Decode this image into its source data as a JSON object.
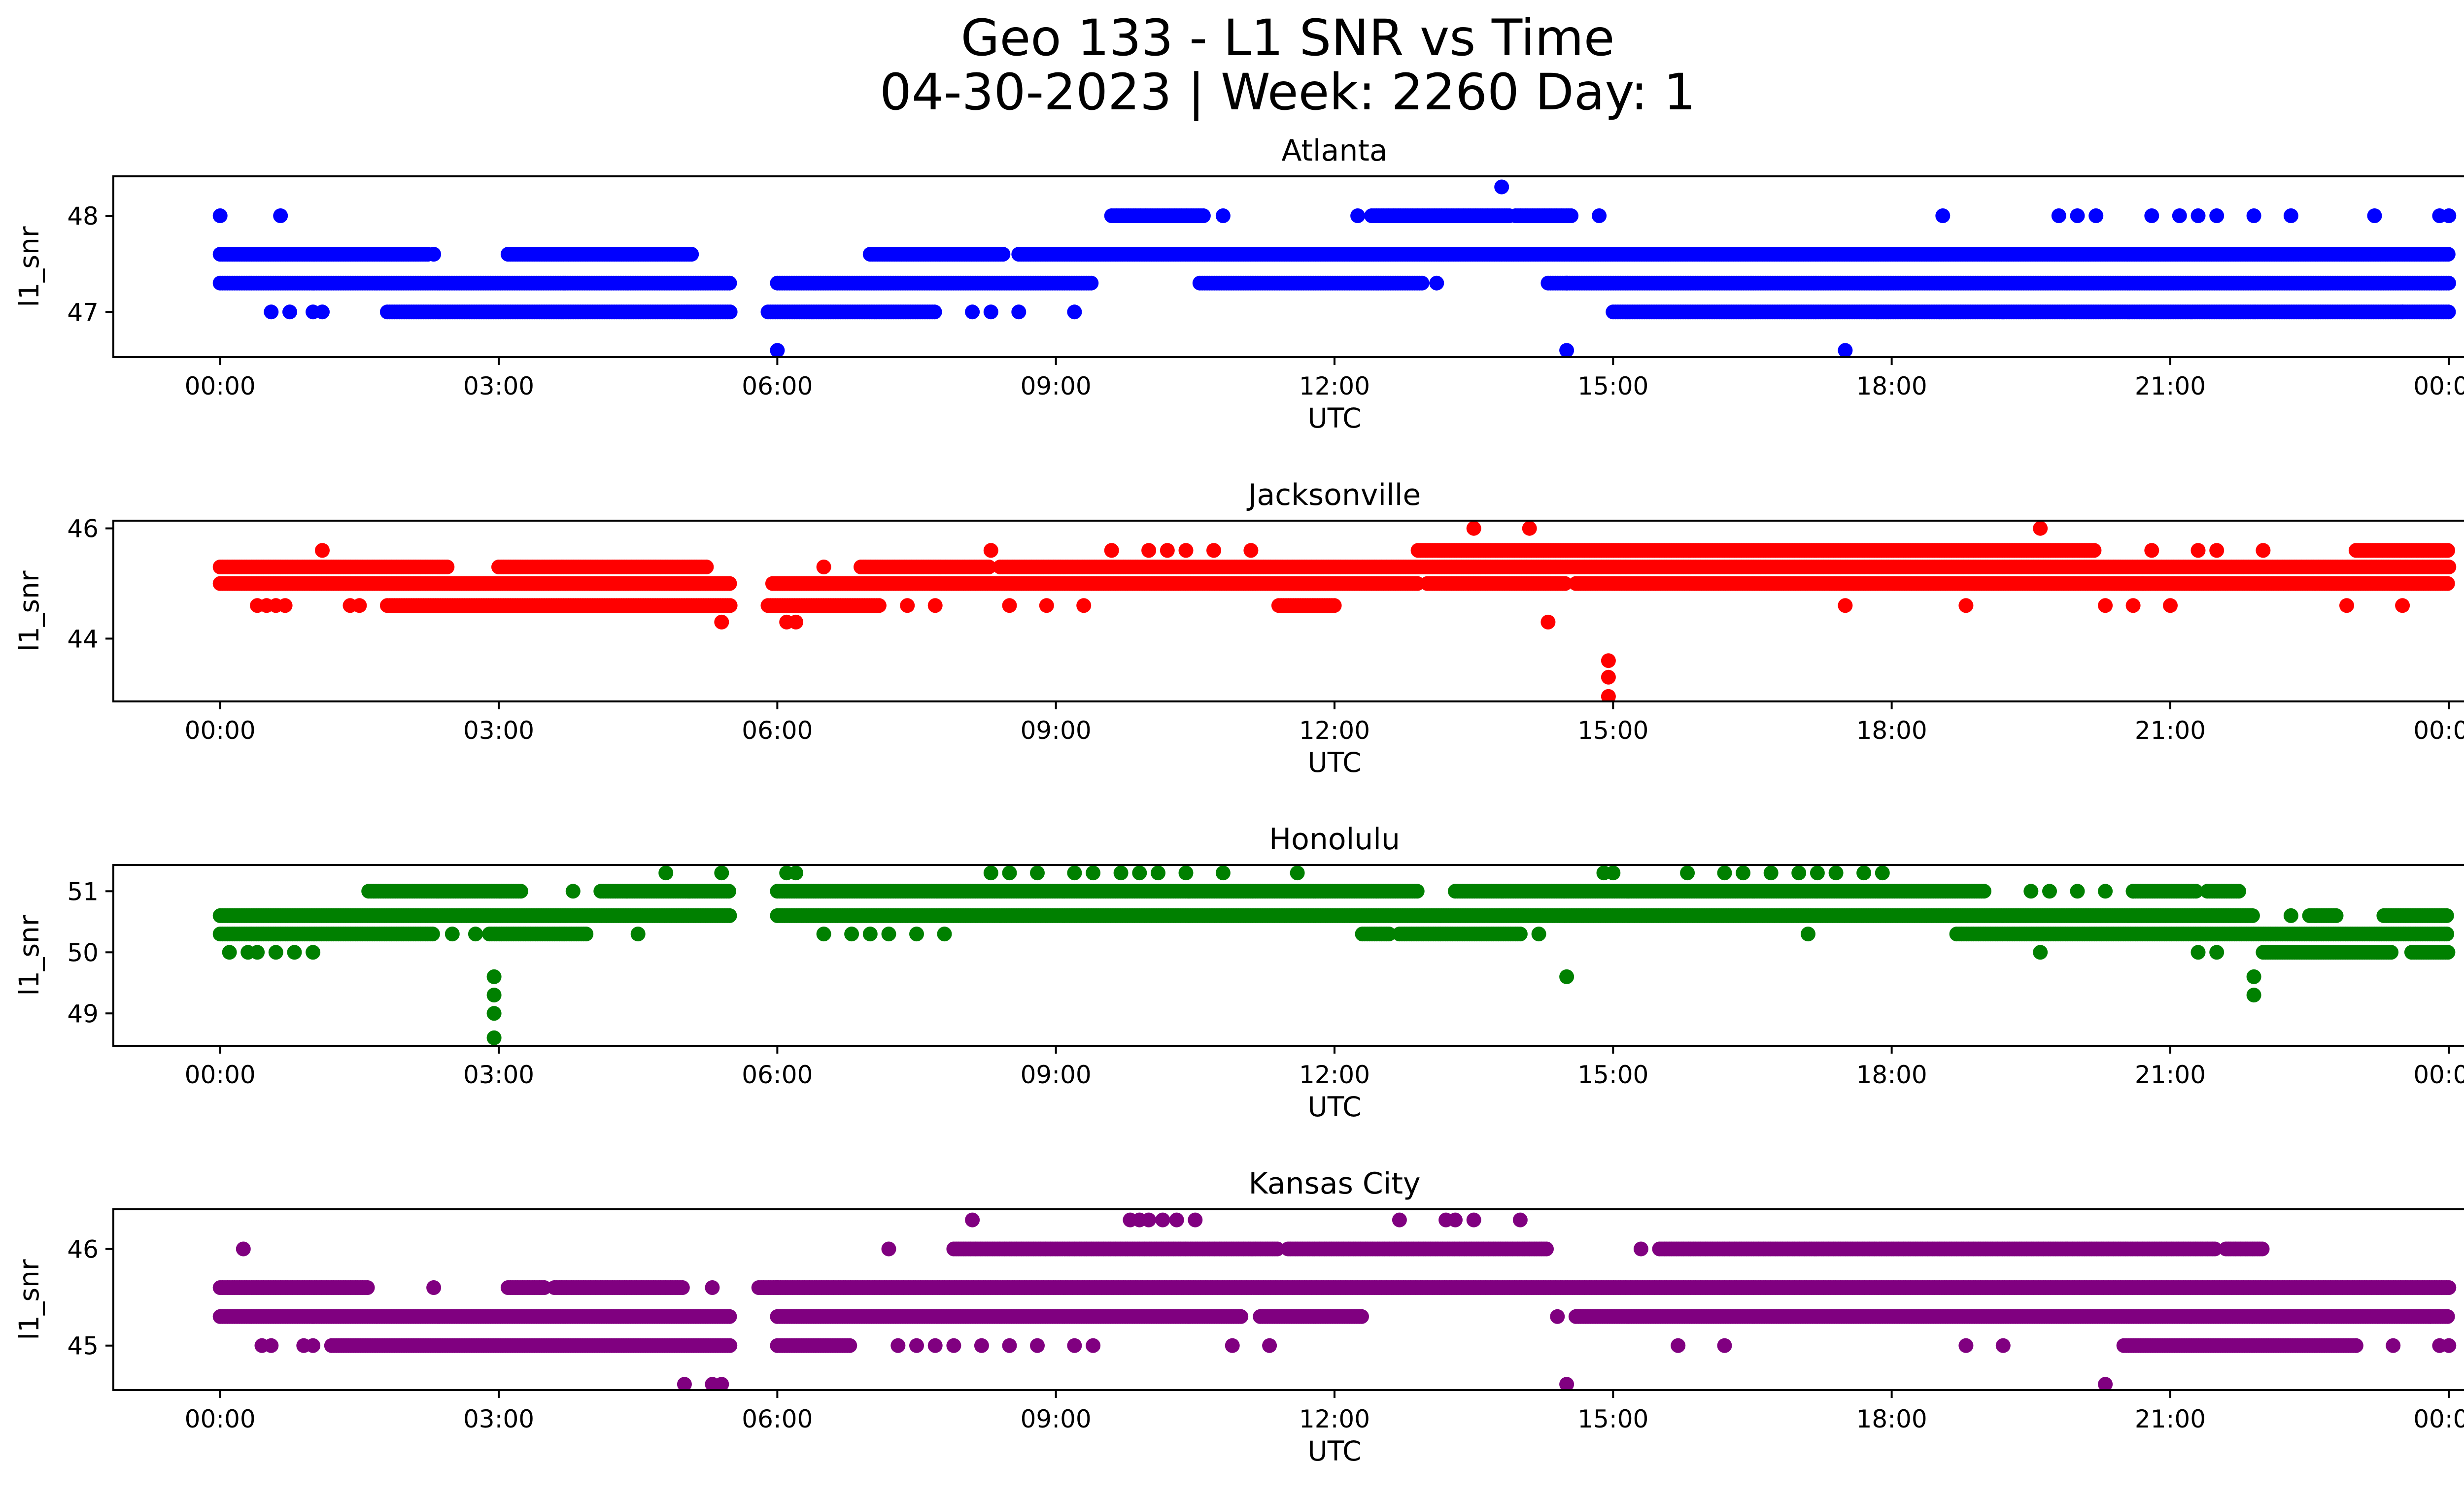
{
  "figure": {
    "title_line1": "Geo 133 - L1 SNR vs Time",
    "title_line2": "04-30-2023 | Week: 2260 Day: 1"
  },
  "chart_data": [
    {
      "type": "scatter",
      "title": "Atlanta",
      "color": "#0000ff",
      "xlabel": "UTC",
      "ylabel": "l1_snr",
      "x_unit": "hours",
      "xlim": [
        -1.15,
        25.15
      ],
      "ylim": [
        46.53,
        48.41
      ],
      "x_ticks": [
        0,
        3,
        6,
        9,
        12,
        15,
        18,
        21,
        24
      ],
      "x_tick_labels": [
        "00:00",
        "03:00",
        "06:00",
        "09:00",
        "12:00",
        "15:00",
        "18:00",
        "21:00",
        "00:00"
      ],
      "y_ticks": [
        47,
        48
      ],
      "y_tick_labels": [
        "47",
        "48"
      ],
      "bands": [
        {
          "y": 47.6,
          "ranges": [
            [
              0,
              2.25
            ],
            [
              3.1,
              5.1
            ],
            [
              7.0,
              8.45
            ],
            [
              8.6,
              24.0
            ]
          ]
        },
        {
          "y": 47.3,
          "ranges": [
            [
              0,
              5.5
            ],
            [
              6.0,
              9.4
            ],
            [
              10.55,
              12.95
            ],
            [
              14.3,
              24.0
            ]
          ]
        },
        {
          "y": 47.0,
          "ranges": [
            [
              1.8,
              5.5
            ],
            [
              5.9,
              7.7
            ],
            [
              15.0,
              24.0
            ]
          ]
        },
        {
          "y": 48.0,
          "ranges": [
            [
              9.6,
              10.6
            ],
            [
              12.4,
              13.9
            ],
            [
              13.95,
              14.55
            ]
          ]
        }
      ],
      "points": [
        [
          0.0,
          48.0
        ],
        [
          0.65,
          48.0
        ],
        [
          0.55,
          47.0
        ],
        [
          0.75,
          47.0
        ],
        [
          1.0,
          47.0
        ],
        [
          1.1,
          47.0
        ],
        [
          2.3,
          47.6
        ],
        [
          8.1,
          47.0
        ],
        [
          8.3,
          47.0
        ],
        [
          8.6,
          47.0
        ],
        [
          9.2,
          47.0
        ],
        [
          10.8,
          48.0
        ],
        [
          12.25,
          48.0
        ],
        [
          13.1,
          47.3
        ],
        [
          14.5,
          47.3
        ],
        [
          14.85,
          48.0
        ],
        [
          13.8,
          48.3
        ],
        [
          6.0,
          46.6
        ],
        [
          14.5,
          46.6
        ],
        [
          17.5,
          46.6
        ],
        [
          18.55,
          48.0
        ],
        [
          19.8,
          48.0
        ],
        [
          20.0,
          48.0
        ],
        [
          20.2,
          48.0
        ],
        [
          20.8,
          48.0
        ],
        [
          21.1,
          48.0
        ],
        [
          21.3,
          48.0
        ],
        [
          21.5,
          48.0
        ],
        [
          21.9,
          48.0
        ],
        [
          22.3,
          48.0
        ],
        [
          23.2,
          48.0
        ],
        [
          23.9,
          48.0
        ],
        [
          24.0,
          48.0
        ],
        [
          23.5,
          47.0
        ]
      ]
    },
    {
      "type": "scatter",
      "title": "Jacksonville",
      "color": "#ff0000",
      "xlabel": "UTC",
      "ylabel": "l1_snr",
      "x_unit": "hours",
      "xlim": [
        -1.15,
        25.15
      ],
      "ylim": [
        42.86,
        46.14
      ],
      "x_ticks": [
        0,
        3,
        6,
        9,
        12,
        15,
        18,
        21,
        24
      ],
      "x_tick_labels": [
        "00:00",
        "03:00",
        "06:00",
        "09:00",
        "12:00",
        "15:00",
        "18:00",
        "21:00",
        "00:00"
      ],
      "y_ticks": [
        44,
        46
      ],
      "y_tick_labels": [
        "44",
        "46"
      ],
      "bands": [
        {
          "y": 45.3,
          "ranges": [
            [
              0,
              2.45
            ],
            [
              3.0,
              5.25
            ],
            [
              6.9,
              8.3
            ],
            [
              8.4,
              24.0
            ]
          ]
        },
        {
          "y": 45.0,
          "ranges": [
            [
              0,
              5.5
            ],
            [
              5.95,
              12.9
            ],
            [
              13.0,
              14.5
            ],
            [
              14.6,
              24.0
            ]
          ]
        },
        {
          "y": 44.6,
          "ranges": [
            [
              1.8,
              5.5
            ],
            [
              5.9,
              7.1
            ],
            [
              11.4,
              12.0
            ]
          ]
        },
        {
          "y": 45.6,
          "ranges": [
            [
              12.9,
              20.2
            ],
            [
              23.0,
              24.0
            ]
          ]
        }
      ],
      "points": [
        [
          0.4,
          44.6
        ],
        [
          0.5,
          44.6
        ],
        [
          0.6,
          44.6
        ],
        [
          0.7,
          44.6
        ],
        [
          1.4,
          44.6
        ],
        [
          1.5,
          44.6
        ],
        [
          1.1,
          45.6
        ],
        [
          5.4,
          44.3
        ],
        [
          6.1,
          44.3
        ],
        [
          6.2,
          44.3
        ],
        [
          6.5,
          45.3
        ],
        [
          7.4,
          44.6
        ],
        [
          7.7,
          44.6
        ],
        [
          8.5,
          44.6
        ],
        [
          8.9,
          44.6
        ],
        [
          9.3,
          44.6
        ],
        [
          8.3,
          45.6
        ],
        [
          9.6,
          45.6
        ],
        [
          10.0,
          45.6
        ],
        [
          10.2,
          45.6
        ],
        [
          10.4,
          45.6
        ],
        [
          10.7,
          45.6
        ],
        [
          11.1,
          45.6
        ],
        [
          13.5,
          46.0
        ],
        [
          14.1,
          46.0
        ],
        [
          19.6,
          46.0
        ],
        [
          14.3,
          44.3
        ],
        [
          14.95,
          43.6
        ],
        [
          14.95,
          43.3
        ],
        [
          14.95,
          42.95
        ],
        [
          17.5,
          44.6
        ],
        [
          18.8,
          44.6
        ],
        [
          20.3,
          44.6
        ],
        [
          20.6,
          44.6
        ],
        [
          21.0,
          44.6
        ],
        [
          22.9,
          44.6
        ],
        [
          23.5,
          44.6
        ],
        [
          20.8,
          45.6
        ],
        [
          21.3,
          45.6
        ],
        [
          21.5,
          45.6
        ],
        [
          22.0,
          45.6
        ],
        [
          20.7,
          45.0
        ]
      ]
    },
    {
      "type": "scatter",
      "title": "Honolulu",
      "color": "#008000",
      "xlabel": "UTC",
      "ylabel": "l1_snr",
      "x_unit": "hours",
      "xlim": [
        -1.15,
        25.15
      ],
      "ylim": [
        48.47,
        51.43
      ],
      "x_ticks": [
        0,
        3,
        6,
        9,
        12,
        15,
        18,
        21,
        24
      ],
      "x_tick_labels": [
        "00:00",
        "03:00",
        "06:00",
        "09:00",
        "12:00",
        "15:00",
        "18:00",
        "21:00",
        "00:00"
      ],
      "y_ticks": [
        49,
        50,
        51
      ],
      "y_tick_labels": [
        "49",
        "50",
        "51"
      ],
      "bands": [
        {
          "y": 50.6,
          "ranges": [
            [
              0,
              5.5
            ],
            [
              6.0,
              21.9
            ],
            [
              22.5,
              22.8
            ],
            [
              23.3,
              24.0
            ]
          ]
        },
        {
          "y": 50.3,
          "ranges": [
            [
              0,
              2.3
            ],
            [
              2.9,
              3.95
            ],
            [
              18.7,
              24.0
            ]
          ]
        },
        {
          "y": 51.0,
          "ranges": [
            [
              1.6,
              3.25
            ],
            [
              4.1,
              5.5
            ],
            [
              6.0,
              12.9
            ],
            [
              13.3,
              19.0
            ],
            [
              20.6,
              21.3
            ],
            [
              21.4,
              21.75
            ]
          ]
        },
        {
          "y": 50.0,
          "ranges": [
            [
              22.0,
              23.4
            ],
            [
              23.6,
              24.0
            ]
          ]
        },
        {
          "y": 50.3,
          "ranges": [
            [
              12.3,
              12.6
            ],
            [
              12.7,
              14.0
            ]
          ]
        }
      ],
      "points": [
        [
          0.1,
          50.0
        ],
        [
          0.3,
          50.0
        ],
        [
          0.4,
          50.0
        ],
        [
          0.6,
          50.0
        ],
        [
          0.8,
          50.0
        ],
        [
          1.0,
          50.0
        ],
        [
          2.5,
          50.3
        ],
        [
          2.75,
          50.3
        ],
        [
          4.5,
          50.3
        ],
        [
          4.8,
          51.3
        ],
        [
          5.4,
          51.3
        ],
        [
          6.1,
          51.3
        ],
        [
          6.2,
          51.3
        ],
        [
          3.8,
          51.0
        ],
        [
          2.95,
          49.6
        ],
        [
          2.95,
          49.3
        ],
        [
          2.95,
          49.0
        ],
        [
          2.95,
          48.6
        ],
        [
          6.5,
          50.3
        ],
        [
          6.8,
          50.3
        ],
        [
          7.0,
          50.3
        ],
        [
          7.2,
          50.3
        ],
        [
          7.5,
          50.3
        ],
        [
          7.8,
          50.3
        ],
        [
          8.3,
          51.3
        ],
        [
          8.5,
          51.3
        ],
        [
          8.8,
          51.3
        ],
        [
          9.2,
          51.3
        ],
        [
          9.4,
          51.3
        ],
        [
          9.7,
          51.3
        ],
        [
          9.9,
          51.3
        ],
        [
          10.1,
          51.3
        ],
        [
          10.4,
          51.3
        ],
        [
          10.8,
          51.3
        ],
        [
          11.6,
          51.3
        ],
        [
          14.2,
          50.3
        ],
        [
          14.5,
          49.6
        ],
        [
          14.9,
          51.3
        ],
        [
          15.0,
          51.3
        ],
        [
          15.8,
          51.3
        ],
        [
          16.2,
          51.3
        ],
        [
          16.4,
          51.3
        ],
        [
          16.7,
          51.3
        ],
        [
          17.0,
          51.3
        ],
        [
          17.2,
          51.3
        ],
        [
          17.4,
          51.3
        ],
        [
          17.7,
          51.3
        ],
        [
          17.9,
          51.3
        ],
        [
          17.1,
          50.3
        ],
        [
          19.6,
          50.0
        ],
        [
          19.5,
          51.0
        ],
        [
          19.7,
          51.0
        ],
        [
          20.0,
          51.0
        ],
        [
          20.3,
          51.0
        ],
        [
          20.6,
          51.0
        ],
        [
          21.3,
          50.0
        ],
        [
          21.5,
          50.0
        ],
        [
          21.9,
          49.6
        ],
        [
          21.9,
          49.3
        ],
        [
          22.3,
          50.6
        ]
      ]
    },
    {
      "type": "scatter",
      "title": "Kansas City",
      "color": "#800080",
      "xlabel": "UTC",
      "ylabel": "l1_snr",
      "x_unit": "hours",
      "xlim": [
        -1.15,
        25.15
      ],
      "ylim": [
        44.54,
        46.41
      ],
      "x_ticks": [
        0,
        3,
        6,
        9,
        12,
        15,
        18,
        21,
        24
      ],
      "x_tick_labels": [
        "00:00",
        "03:00",
        "06:00",
        "09:00",
        "12:00",
        "15:00",
        "18:00",
        "21:00",
        "00:00"
      ],
      "y_ticks": [
        45,
        46
      ],
      "y_tick_labels": [
        "45",
        "46"
      ],
      "bands": [
        {
          "y": 45.6,
          "ranges": [
            [
              0,
              1.6
            ],
            [
              3.1,
              3.5
            ],
            [
              3.6,
              5.0
            ],
            [
              5.8,
              24.0
            ]
          ]
        },
        {
          "y": 45.3,
          "ranges": [
            [
              0,
              5.5
            ],
            [
              6.0,
              11.0
            ],
            [
              11.2,
              12.3
            ],
            [
              14.6,
              24.0
            ]
          ]
        },
        {
          "y": 45.0,
          "ranges": [
            [
              1.2,
              5.5
            ],
            [
              6.0,
              6.8
            ],
            [
              20.5,
              23.0
            ]
          ]
        },
        {
          "y": 46.0,
          "ranges": [
            [
              7.9,
              11.4
            ],
            [
              11.5,
              14.3
            ],
            [
              15.5,
              21.5
            ],
            [
              21.6,
              22.0
            ]
          ]
        }
      ],
      "points": [
        [
          0.25,
          46.0
        ],
        [
          0.45,
          45.0
        ],
        [
          0.55,
          45.0
        ],
        [
          0.9,
          45.0
        ],
        [
          1.0,
          45.0
        ],
        [
          2.3,
          45.6
        ],
        [
          5.0,
          44.6
        ],
        [
          5.3,
          44.6
        ],
        [
          5.4,
          44.6
        ],
        [
          5.3,
          45.6
        ],
        [
          6.0,
          45.6
        ],
        [
          7.2,
          46.0
        ],
        [
          7.3,
          45.0
        ],
        [
          7.5,
          45.0
        ],
        [
          7.7,
          45.0
        ],
        [
          7.9,
          45.0
        ],
        [
          8.2,
          45.0
        ],
        [
          8.5,
          45.0
        ],
        [
          8.8,
          45.0
        ],
        [
          9.2,
          45.0
        ],
        [
          9.4,
          45.0
        ],
        [
          10.9,
          45.0
        ],
        [
          11.3,
          45.0
        ],
        [
          8.1,
          46.3
        ],
        [
          9.8,
          46.3
        ],
        [
          9.9,
          46.3
        ],
        [
          10.0,
          46.3
        ],
        [
          10.15,
          46.3
        ],
        [
          10.3,
          46.3
        ],
        [
          10.5,
          46.3
        ],
        [
          12.7,
          46.3
        ],
        [
          13.2,
          46.3
        ],
        [
          13.3,
          46.3
        ],
        [
          13.5,
          46.3
        ],
        [
          14.0,
          46.3
        ],
        [
          14.4,
          45.3
        ],
        [
          14.5,
          44.6
        ],
        [
          15.3,
          46.0
        ],
        [
          15.7,
          45.0
        ],
        [
          16.2,
          45.0
        ],
        [
          18.8,
          45.0
        ],
        [
          19.2,
          45.0
        ],
        [
          20.3,
          44.6
        ],
        [
          23.0,
          45.0
        ],
        [
          23.4,
          45.0
        ],
        [
          23.9,
          45.0
        ],
        [
          24.0,
          45.0
        ],
        [
          23.8,
          45.3
        ]
      ]
    }
  ]
}
